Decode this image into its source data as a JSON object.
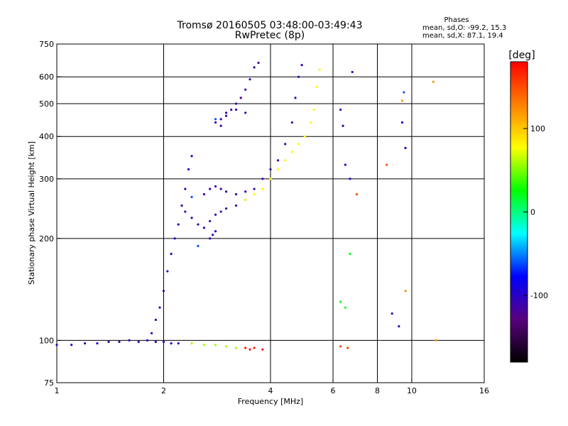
{
  "chart_data": {
    "type": "scatter",
    "title": "Tromsø 20160505 03:48:00-03:49:43",
    "subtitle": "RwPretec (8p)",
    "xlabel": "Frequency [MHz]",
    "ylabel": "Stationary phase Virtual Height [km]",
    "x_scale": "log",
    "y_scale": "log",
    "xlim": [
      1,
      16
    ],
    "ylim": [
      75,
      750
    ],
    "x_ticks": [
      1,
      2,
      4,
      6,
      8,
      10,
      16
    ],
    "x_ticklabels": [
      "1",
      "2",
      "4",
      "6",
      "8",
      "10",
      "16"
    ],
    "y_ticks": [
      75,
      100,
      200,
      300,
      400,
      500,
      600,
      750
    ],
    "y_ticklabels": [
      "75",
      "100",
      "200",
      "300",
      "400",
      "500",
      "600",
      "750"
    ],
    "x_gridlines": [
      2,
      4,
      6,
      8,
      10
    ],
    "y_gridlines": [
      100,
      200,
      300,
      400,
      500,
      600
    ],
    "stats": {
      "header": "Phases",
      "line_o": "mean, sd,O: -99.2, 15.3",
      "line_x": "mean, sd,X:  87.1, 19.4"
    },
    "colorbar": {
      "label": "[deg]",
      "range": [
        -180,
        180
      ],
      "ticks": [
        100,
        0,
        -100
      ],
      "ticklabels": [
        "100",
        "0",
        "-100"
      ],
      "colors": [
        "#000000",
        "#5a0080",
        "#0000ff",
        "#00ffff",
        "#00ff00",
        "#ffff00",
        "#ff8000",
        "#ff0000"
      ]
    },
    "traces": [
      {
        "name": "",
        "phase": -100,
        "points": [
          [
            1.0,
            97
          ],
          [
            1.1,
            97
          ],
          [
            1.2,
            98
          ],
          [
            1.3,
            98
          ],
          [
            1.4,
            99
          ],
          [
            1.5,
            99
          ],
          [
            1.6,
            100
          ],
          [
            1.7,
            99
          ],
          [
            1.8,
            100
          ],
          [
            1.9,
            99
          ],
          [
            2.0,
            99
          ],
          [
            2.1,
            98
          ],
          [
            2.2,
            98
          ]
        ]
      },
      {
        "name": "",
        "phase": -100,
        "points": [
          [
            1.85,
            105
          ],
          [
            1.9,
            115
          ],
          [
            1.95,
            125
          ],
          [
            2.0,
            140
          ],
          [
            2.05,
            160
          ],
          [
            2.1,
            180
          ],
          [
            2.15,
            200
          ],
          [
            2.2,
            220
          ],
          [
            2.25,
            250
          ],
          [
            2.3,
            280
          ],
          [
            2.35,
            320
          ],
          [
            2.4,
            350
          ]
        ]
      },
      {
        "name": "",
        "phase": -110,
        "points": [
          [
            2.3,
            240
          ],
          [
            2.4,
            230
          ],
          [
            2.5,
            220
          ],
          [
            2.6,
            215
          ],
          [
            2.7,
            225
          ],
          [
            2.8,
            235
          ],
          [
            2.9,
            240
          ],
          [
            3.0,
            245
          ],
          [
            3.2,
            250
          ],
          [
            3.4,
            260
          ],
          [
            3.6,
            280
          ],
          [
            3.8,
            300
          ],
          [
            4.0,
            320
          ],
          [
            4.2,
            340
          ],
          [
            4.4,
            380
          ],
          [
            4.6,
            440
          ],
          [
            4.7,
            520
          ],
          [
            4.8,
            600
          ],
          [
            4.9,
            650
          ]
        ]
      },
      {
        "name": "",
        "phase": -110,
        "points": [
          [
            2.6,
            270
          ],
          [
            2.7,
            280
          ],
          [
            2.8,
            285
          ],
          [
            2.9,
            280
          ],
          [
            3.0,
            275
          ],
          [
            3.2,
            270
          ],
          [
            3.4,
            275
          ]
        ]
      },
      {
        "name": "",
        "phase": -115,
        "points": [
          [
            2.9,
            430
          ],
          [
            3.0,
            460
          ],
          [
            3.1,
            480
          ],
          [
            3.2,
            500
          ],
          [
            3.3,
            520
          ],
          [
            3.4,
            550
          ],
          [
            3.5,
            590
          ],
          [
            3.6,
            640
          ],
          [
            3.7,
            660
          ]
        ]
      },
      {
        "name": "",
        "phase": -110,
        "points": [
          [
            2.8,
            440
          ],
          [
            2.9,
            450
          ],
          [
            3.0,
            470
          ],
          [
            3.2,
            480
          ],
          [
            3.4,
            470
          ]
        ]
      },
      {
        "name": "",
        "phase": -100,
        "points": [
          [
            2.7,
            200
          ],
          [
            2.75,
            205
          ],
          [
            2.8,
            210
          ]
        ]
      },
      {
        "name": "",
        "phase": 80,
        "points": [
          [
            3.4,
            260
          ],
          [
            3.6,
            270
          ],
          [
            3.8,
            280
          ],
          [
            4.0,
            300
          ],
          [
            4.2,
            320
          ],
          [
            4.4,
            340
          ],
          [
            4.6,
            360
          ],
          [
            4.8,
            380
          ],
          [
            5.0,
            400
          ],
          [
            5.2,
            440
          ],
          [
            5.3,
            480
          ],
          [
            5.4,
            560
          ],
          [
            5.5,
            630
          ]
        ]
      },
      {
        "name": "",
        "phase": 60,
        "points": [
          [
            2.4,
            98
          ],
          [
            2.6,
            97
          ],
          [
            2.8,
            97
          ],
          [
            3.0,
            96
          ],
          [
            3.2,
            95
          ]
        ]
      },
      {
        "name": "",
        "phase": 170,
        "points": [
          [
            3.4,
            95
          ],
          [
            3.5,
            94
          ],
          [
            3.6,
            95
          ],
          [
            3.8,
            94
          ]
        ]
      },
      {
        "name": "",
        "phase": -100,
        "points": [
          [
            6.3,
            480
          ],
          [
            6.4,
            430
          ],
          [
            6.5,
            330
          ],
          [
            6.7,
            300
          ],
          [
            6.8,
            620
          ]
        ]
      },
      {
        "name": "",
        "phase": 20,
        "points": [
          [
            6.3,
            130
          ],
          [
            6.5,
            125
          ],
          [
            6.7,
            180
          ]
        ]
      },
      {
        "name": "",
        "phase": 150,
        "points": [
          [
            6.3,
            96
          ],
          [
            6.6,
            95
          ],
          [
            7.0,
            270
          ],
          [
            8.5,
            330
          ]
        ]
      },
      {
        "name": "",
        "phase": -100,
        "points": [
          [
            8.8,
            120
          ],
          [
            9.2,
            110
          ],
          [
            9.4,
            440
          ],
          [
            9.6,
            370
          ]
        ]
      },
      {
        "name": "",
        "phase": 120,
        "points": [
          [
            9.4,
            510
          ],
          [
            9.6,
            140
          ],
          [
            11.5,
            580
          ],
          [
            11.7,
            100
          ]
        ]
      },
      {
        "name": "",
        "phase": -60,
        "points": [
          [
            9.5,
            540
          ],
          [
            2.4,
            265
          ],
          [
            2.5,
            190
          ],
          [
            2.8,
            450
          ]
        ]
      }
    ]
  }
}
